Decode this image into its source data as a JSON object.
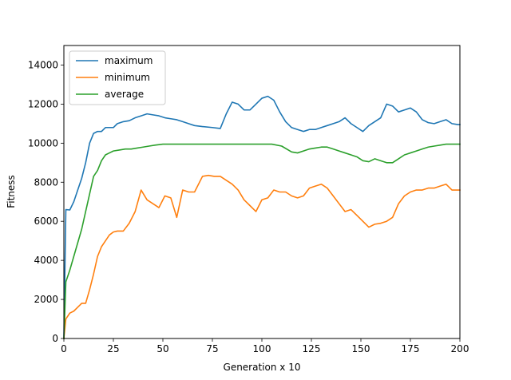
{
  "chart_data": {
    "type": "line",
    "title": "",
    "xlabel": "Generation x 10",
    "ylabel": "Fitness",
    "xlim": [
      0,
      200
    ],
    "ylim": [
      0,
      15000
    ],
    "xticks": [
      0,
      25,
      50,
      75,
      100,
      125,
      150,
      175,
      200
    ],
    "yticks": [
      0,
      2000,
      4000,
      6000,
      8000,
      10000,
      12000,
      14000
    ],
    "grid": false,
    "legend_position": "top-left",
    "series": [
      {
        "name": "maximum",
        "color": "#1f77b4",
        "points": [
          [
            0,
            0
          ],
          [
            1,
            6600
          ],
          [
            3,
            6580
          ],
          [
            5,
            7000
          ],
          [
            7,
            7600
          ],
          [
            9,
            8200
          ],
          [
            11,
            9000
          ],
          [
            13,
            10000
          ],
          [
            15,
            10500
          ],
          [
            17,
            10600
          ],
          [
            19,
            10600
          ],
          [
            21,
            10800
          ],
          [
            23,
            10800
          ],
          [
            25,
            10800
          ],
          [
            27,
            11000
          ],
          [
            30,
            11100
          ],
          [
            33,
            11150
          ],
          [
            36,
            11300
          ],
          [
            39,
            11400
          ],
          [
            42,
            11500
          ],
          [
            45,
            11450
          ],
          [
            48,
            11400
          ],
          [
            51,
            11300
          ],
          [
            54,
            11250
          ],
          [
            57,
            11200
          ],
          [
            60,
            11100
          ],
          [
            63,
            11000
          ],
          [
            66,
            10900
          ],
          [
            70,
            10850
          ],
          [
            75,
            10800
          ],
          [
            79,
            10750
          ],
          [
            82,
            11500
          ],
          [
            85,
            12100
          ],
          [
            88,
            12000
          ],
          [
            91,
            11700
          ],
          [
            94,
            11700
          ],
          [
            97,
            12000
          ],
          [
            100,
            12300
          ],
          [
            103,
            12400
          ],
          [
            106,
            12200
          ],
          [
            109,
            11600
          ],
          [
            112,
            11100
          ],
          [
            115,
            10800
          ],
          [
            118,
            10700
          ],
          [
            121,
            10600
          ],
          [
            124,
            10700
          ],
          [
            127,
            10700
          ],
          [
            130,
            10800
          ],
          [
            133,
            10900
          ],
          [
            136,
            11000
          ],
          [
            139,
            11100
          ],
          [
            142,
            11300
          ],
          [
            145,
            11000
          ],
          [
            148,
            10800
          ],
          [
            151,
            10600
          ],
          [
            154,
            10900
          ],
          [
            157,
            11100
          ],
          [
            160,
            11300
          ],
          [
            163,
            12000
          ],
          [
            166,
            11900
          ],
          [
            169,
            11600
          ],
          [
            172,
            11700
          ],
          [
            175,
            11800
          ],
          [
            178,
            11600
          ],
          [
            181,
            11200
          ],
          [
            184,
            11050
          ],
          [
            187,
            11000
          ],
          [
            190,
            11100
          ],
          [
            193,
            11200
          ],
          [
            196,
            11000
          ],
          [
            199,
            10950
          ],
          [
            200,
            10950
          ]
        ]
      },
      {
        "name": "minimum",
        "color": "#ff7f0e",
        "points": [
          [
            0,
            0
          ],
          [
            1,
            1000
          ],
          [
            3,
            1300
          ],
          [
            5,
            1400
          ],
          [
            7,
            1600
          ],
          [
            9,
            1800
          ],
          [
            11,
            1800
          ],
          [
            13,
            2500
          ],
          [
            15,
            3300
          ],
          [
            17,
            4200
          ],
          [
            19,
            4700
          ],
          [
            21,
            5000
          ],
          [
            23,
            5300
          ],
          [
            25,
            5450
          ],
          [
            27,
            5500
          ],
          [
            30,
            5500
          ],
          [
            33,
            5900
          ],
          [
            36,
            6500
          ],
          [
            39,
            7600
          ],
          [
            42,
            7100
          ],
          [
            45,
            6900
          ],
          [
            48,
            6700
          ],
          [
            51,
            7300
          ],
          [
            54,
            7200
          ],
          [
            57,
            6200
          ],
          [
            60,
            7600
          ],
          [
            63,
            7500
          ],
          [
            66,
            7500
          ],
          [
            70,
            8300
          ],
          [
            73,
            8350
          ],
          [
            76,
            8300
          ],
          [
            79,
            8300
          ],
          [
            82,
            8100
          ],
          [
            85,
            7900
          ],
          [
            88,
            7600
          ],
          [
            91,
            7100
          ],
          [
            94,
            6800
          ],
          [
            97,
            6500
          ],
          [
            100,
            7100
          ],
          [
            103,
            7200
          ],
          [
            106,
            7600
          ],
          [
            109,
            7500
          ],
          [
            112,
            7500
          ],
          [
            115,
            7300
          ],
          [
            118,
            7200
          ],
          [
            121,
            7300
          ],
          [
            124,
            7700
          ],
          [
            127,
            7800
          ],
          [
            130,
            7900
          ],
          [
            133,
            7700
          ],
          [
            136,
            7300
          ],
          [
            139,
            6900
          ],
          [
            142,
            6500
          ],
          [
            145,
            6600
          ],
          [
            148,
            6300
          ],
          [
            151,
            6000
          ],
          [
            154,
            5700
          ],
          [
            157,
            5850
          ],
          [
            160,
            5900
          ],
          [
            163,
            6000
          ],
          [
            166,
            6200
          ],
          [
            169,
            6900
          ],
          [
            172,
            7300
          ],
          [
            175,
            7500
          ],
          [
            178,
            7600
          ],
          [
            181,
            7600
          ],
          [
            184,
            7700
          ],
          [
            187,
            7700
          ],
          [
            190,
            7800
          ],
          [
            193,
            7900
          ],
          [
            196,
            7600
          ],
          [
            200,
            7600
          ]
        ]
      },
      {
        "name": "average",
        "color": "#2ca02c",
        "points": [
          [
            0,
            0
          ],
          [
            1,
            2900
          ],
          [
            3,
            3500
          ],
          [
            5,
            4200
          ],
          [
            7,
            4900
          ],
          [
            9,
            5600
          ],
          [
            11,
            6500
          ],
          [
            13,
            7400
          ],
          [
            15,
            8300
          ],
          [
            17,
            8600
          ],
          [
            19,
            9100
          ],
          [
            21,
            9400
          ],
          [
            23,
            9500
          ],
          [
            25,
            9600
          ],
          [
            28,
            9650
          ],
          [
            31,
            9700
          ],
          [
            34,
            9700
          ],
          [
            37,
            9750
          ],
          [
            40,
            9800
          ],
          [
            43,
            9850
          ],
          [
            46,
            9900
          ],
          [
            50,
            9950
          ],
          [
            55,
            9950
          ],
          [
            60,
            9950
          ],
          [
            65,
            9950
          ],
          [
            70,
            9950
          ],
          [
            75,
            9950
          ],
          [
            80,
            9950
          ],
          [
            85,
            9950
          ],
          [
            90,
            9950
          ],
          [
            95,
            9950
          ],
          [
            100,
            9950
          ],
          [
            105,
            9950
          ],
          [
            110,
            9850
          ],
          [
            115,
            9550
          ],
          [
            118,
            9500
          ],
          [
            121,
            9600
          ],
          [
            124,
            9700
          ],
          [
            127,
            9750
          ],
          [
            130,
            9800
          ],
          [
            133,
            9800
          ],
          [
            136,
            9700
          ],
          [
            139,
            9600
          ],
          [
            142,
            9500
          ],
          [
            145,
            9400
          ],
          [
            148,
            9300
          ],
          [
            151,
            9100
          ],
          [
            154,
            9050
          ],
          [
            157,
            9200
          ],
          [
            160,
            9100
          ],
          [
            163,
            9000
          ],
          [
            166,
            9000
          ],
          [
            169,
            9200
          ],
          [
            172,
            9400
          ],
          [
            175,
            9500
          ],
          [
            178,
            9600
          ],
          [
            181,
            9700
          ],
          [
            184,
            9800
          ],
          [
            187,
            9850
          ],
          [
            190,
            9900
          ],
          [
            193,
            9950
          ],
          [
            196,
            9950
          ],
          [
            200,
            9950
          ]
        ]
      }
    ]
  }
}
